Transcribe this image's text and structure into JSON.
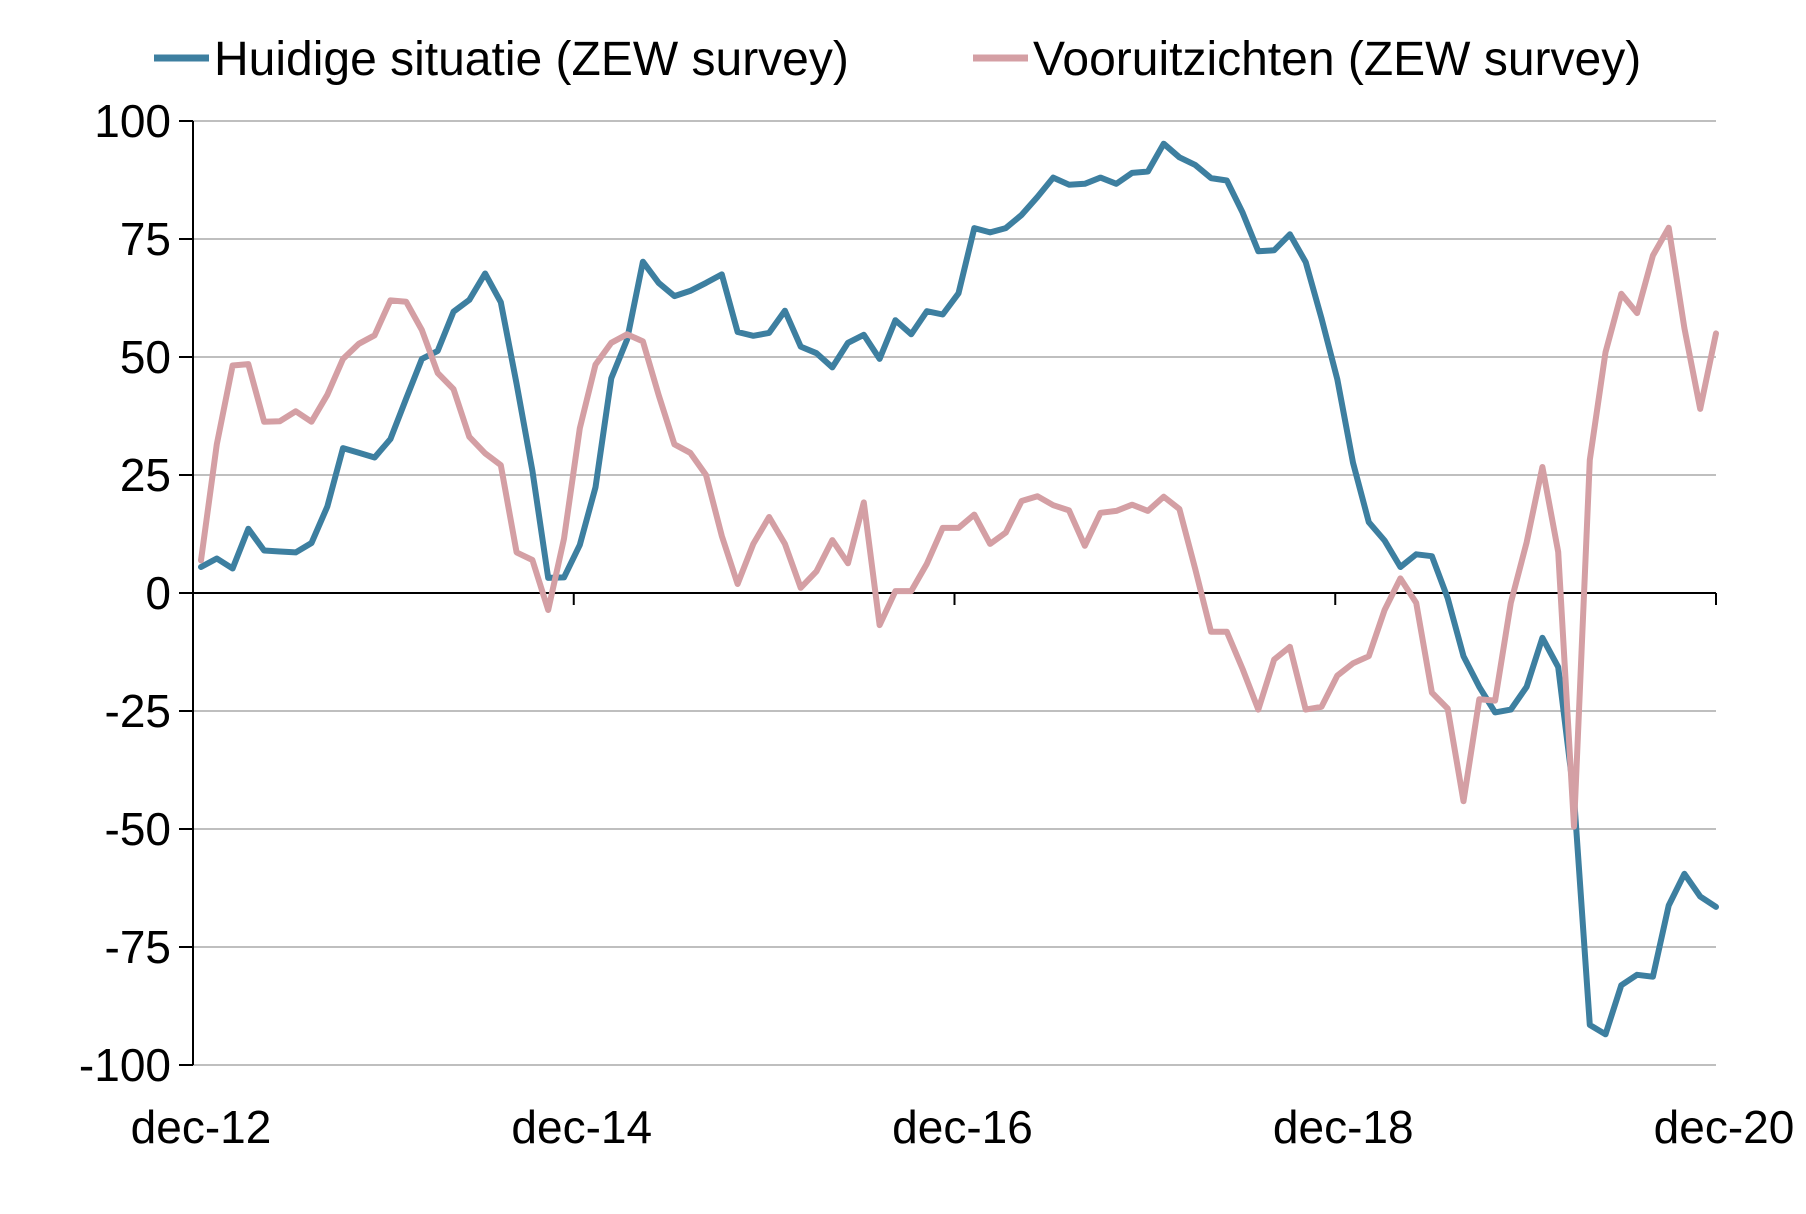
{
  "chart_data": {
    "type": "line",
    "title": "",
    "xlabel": "",
    "ylabel": "",
    "x_start": "2012-12",
    "x_end": "2020-12",
    "x_frequency": "monthly",
    "x_ticks": [
      "dec-12",
      "dec-14",
      "dec-16",
      "dec-18",
      "dec-20"
    ],
    "ylim": [
      -100,
      100
    ],
    "y_ticks": [
      100,
      75,
      50,
      25,
      0,
      -25,
      -50,
      -75,
      -100
    ],
    "grid": "horizontal",
    "legend_position": "top",
    "series": [
      {
        "name": "Huidige situatie (ZEW survey)",
        "color": "#3d7fa0",
        "values": [
          5.5,
          7.3,
          5.2,
          13.6,
          9,
          8.8,
          8.6,
          10.6,
          18.3,
          30.7,
          29.7,
          28.7,
          32.6,
          41.2,
          49.6,
          51.3,
          59.6,
          62.1,
          67.7,
          61.6,
          44.3,
          25.9,
          3.2,
          3.3,
          10.2,
          22.4,
          45.5,
          53.7,
          70.2,
          65.7,
          62.9,
          64,
          65.7,
          67.5,
          55.3,
          54.5,
          55.1,
          59.8,
          52.2,
          50.8,
          47.8,
          53,
          54.7,
          49.6,
          57.8,
          54.8,
          59.7,
          59,
          63.5,
          77.3,
          76.4,
          77.3,
          80.1,
          83.9,
          88,
          86.5,
          86.7,
          88,
          86.7,
          89,
          89.3,
          95.2,
          92.3,
          90.7,
          87.9,
          87.4,
          80.6,
          72.4,
          72.6,
          76,
          70.1,
          58.2,
          45.3,
          27.6,
          15,
          11.1,
          5.5,
          8.2,
          7.8,
          -1.1,
          -13.4,
          -19.9,
          -25.3,
          -24.7,
          -19.9,
          -9.5,
          -15.7,
          -43.1,
          -91.5,
          -93.5,
          -83.1,
          -80.9,
          -81.3,
          -66.2,
          -59.5,
          -64.3,
          -66.5
        ]
      },
      {
        "name": "Vooruitzichten (ZEW survey)",
        "color": "#d49fa4",
        "values": [
          6.9,
          31.5,
          48.2,
          48.5,
          36.3,
          36.4,
          38.5,
          36.3,
          42,
          49.6,
          52.8,
          54.6,
          62,
          61.7,
          55.7,
          46.6,
          43.2,
          33.1,
          29.6,
          27.1,
          8.6,
          7,
          -3.6,
          11.5,
          34.9,
          48.4,
          53,
          54.8,
          53.3,
          41.9,
          31.5,
          29.7,
          25,
          12.1,
          1.9,
          10.4,
          16.1,
          10.4,
          1.1,
          4.6,
          11.2,
          6.3,
          19.2,
          -6.8,
          0.4,
          0.4,
          6.2,
          13.8,
          13.8,
          16.6,
          10.4,
          12.8,
          19.5,
          20.5,
          18.6,
          17.5,
          10,
          17,
          17.4,
          18.7,
          17.4,
          20.4,
          17.8,
          5.1,
          -8.2,
          -8.2,
          -16.1,
          -24.7,
          -14.1,
          -11.4,
          -24.7,
          -24.1,
          -17.5,
          -14.9,
          -13.4,
          -3.6,
          3.1,
          -2.1,
          -21.1,
          -24.5,
          -44.1,
          -22.5,
          -22.8,
          -2.1,
          10.7,
          26.7,
          8.7,
          -49.5,
          28.2,
          51,
          63.4,
          59.3,
          71.5,
          77.4,
          56.1,
          39,
          55
        ]
      }
    ]
  }
}
